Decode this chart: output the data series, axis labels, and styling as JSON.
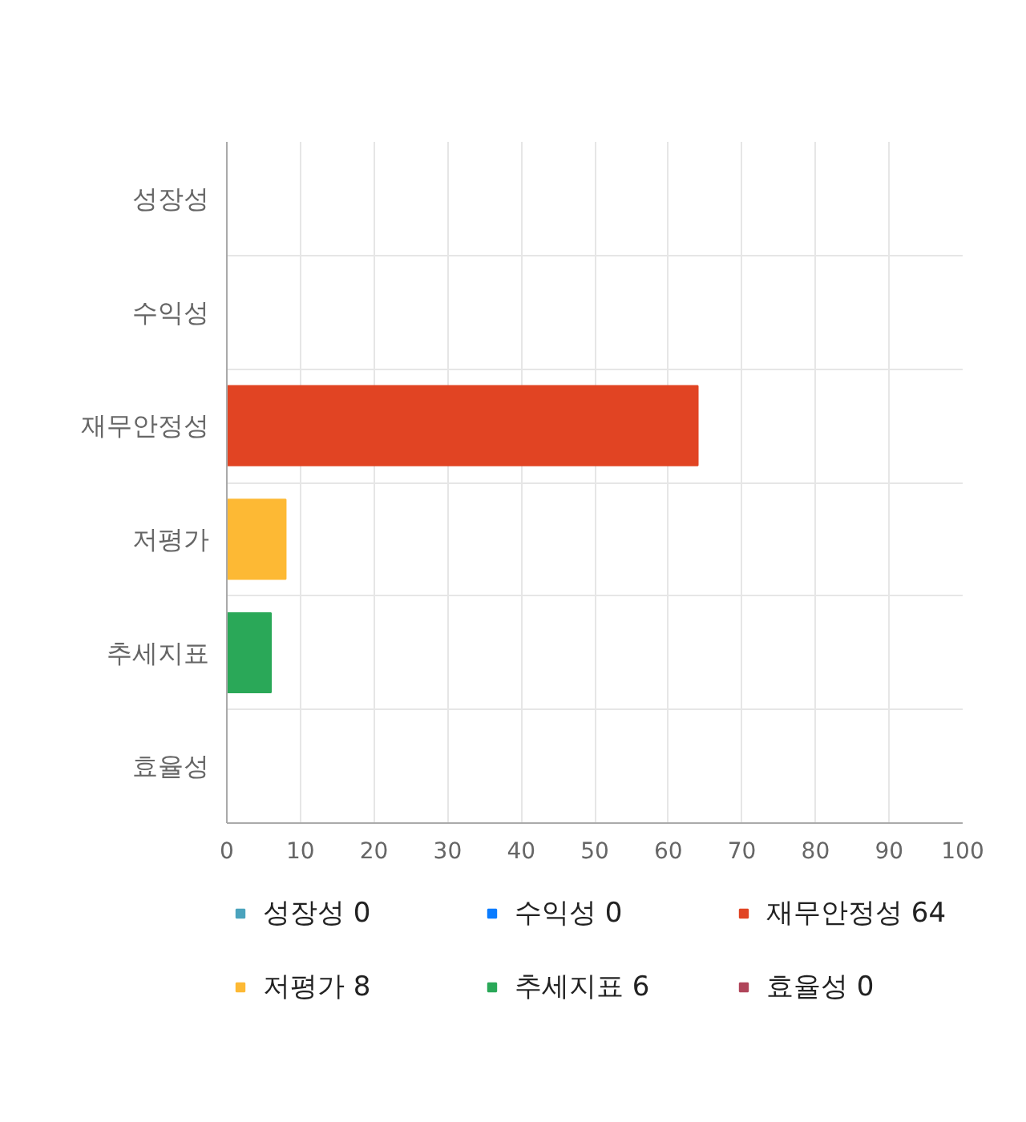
{
  "chart_data": {
    "type": "bar",
    "orientation": "horizontal",
    "stacked": true,
    "categories": [
      "성장성",
      "수익성",
      "재무안정성",
      "저평가",
      "추세지표",
      "효율성"
    ],
    "series": [
      {
        "name": "성장성 0",
        "color": "#4ba3bd",
        "values": [
          0,
          null,
          null,
          null,
          null,
          null
        ]
      },
      {
        "name": "수익성 0",
        "color": "#0a7cff",
        "values": [
          null,
          0,
          null,
          null,
          null,
          null
        ]
      },
      {
        "name": "재무안정성 64",
        "color": "#e14423",
        "values": [
          null,
          null,
          64,
          null,
          null,
          null
        ]
      },
      {
        "name": "저평가 8",
        "color": "#fdb934",
        "values": [
          null,
          null,
          null,
          8,
          null,
          null
        ]
      },
      {
        "name": "추세지표 6",
        "color": "#2aa858",
        "values": [
          null,
          null,
          null,
          null,
          6,
          null
        ]
      },
      {
        "name": "효율성 0",
        "color": "#b0455a",
        "values": [
          null,
          null,
          null,
          null,
          null,
          0
        ]
      }
    ],
    "xlim": [
      0,
      100
    ],
    "xticks": [
      0,
      10,
      20,
      30,
      40,
      50,
      60,
      70,
      80,
      90,
      100
    ],
    "grid": true,
    "legend": "bottom"
  }
}
